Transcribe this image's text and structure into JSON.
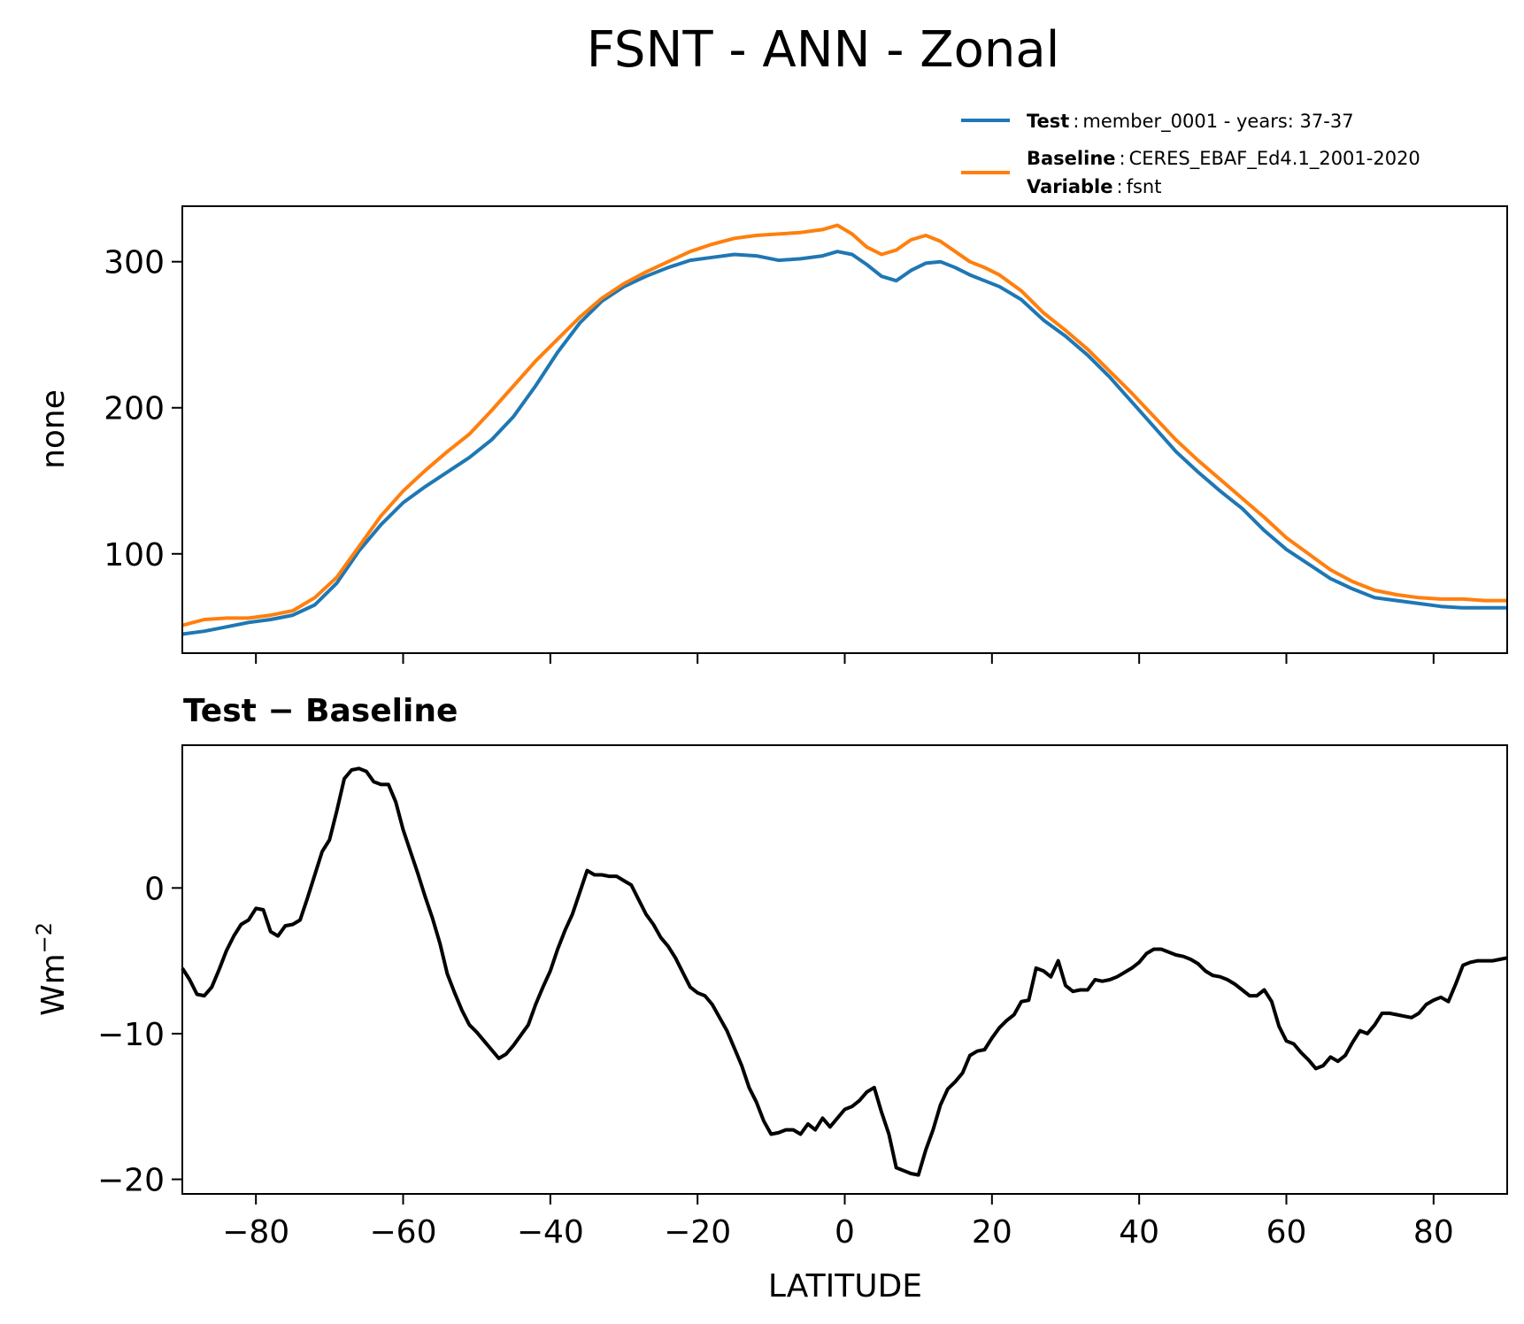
{
  "chart_data": [
    {
      "type": "line",
      "title": "FSNT - ANN - Zonal",
      "ylabel": "none",
      "xlim": [
        -90,
        90
      ],
      "ylim": [
        32,
        338
      ],
      "yticks": [
        100,
        200,
        300
      ],
      "xticks": [
        -80,
        -60,
        -40,
        -20,
        0,
        20,
        40,
        60,
        80
      ],
      "legend_position": "top-right",
      "legend": [
        {
          "key": "Test",
          "text": "member_0001 - years: 37-37",
          "color": "#1f77b4"
        },
        {
          "key": "Baseline",
          "text": "CERES_EBAF_Ed4.1_2001-2020",
          "color": "#ff7f0e"
        },
        {
          "key": "Variable",
          "text": "fsnt"
        }
      ],
      "series": [
        {
          "name": "Test",
          "color": "#1f77b4",
          "x": [
            -90,
            -87,
            -84,
            -81,
            -78,
            -75,
            -72,
            -69,
            -66,
            -63,
            -60,
            -57,
            -54,
            -51,
            -48,
            -45,
            -42,
            -39,
            -36,
            -33,
            -30,
            -27,
            -24,
            -21,
            -18,
            -15,
            -12,
            -9,
            -6,
            -3,
            -1,
            1,
            3,
            5,
            7,
            9,
            11,
            13,
            15,
            17,
            19,
            21,
            24,
            27,
            30,
            33,
            36,
            39,
            42,
            45,
            48,
            51,
            54,
            57,
            60,
            63,
            66,
            69,
            72,
            75,
            78,
            81,
            84,
            87,
            90
          ],
          "y": [
            45,
            47,
            50,
            53,
            55,
            58,
            65,
            80,
            102,
            120,
            135,
            146,
            156,
            166,
            178,
            194,
            215,
            238,
            258,
            273,
            283,
            290,
            296,
            301,
            303,
            305,
            304,
            301,
            302,
            304,
            307,
            305,
            298,
            290,
            287,
            294,
            299,
            300,
            296,
            291,
            287,
            283,
            274,
            260,
            249,
            236,
            221,
            204,
            187,
            170,
            156,
            143,
            131,
            116,
            103,
            93,
            83,
            76,
            70,
            68,
            66,
            64,
            63,
            63,
            63
          ]
        },
        {
          "name": "Baseline",
          "color": "#ff7f0e",
          "x": [
            -90,
            -87,
            -84,
            -81,
            -78,
            -75,
            -72,
            -69,
            -66,
            -63,
            -60,
            -57,
            -54,
            -51,
            -48,
            -45,
            -42,
            -39,
            -36,
            -33,
            -30,
            -27,
            -24,
            -21,
            -18,
            -15,
            -12,
            -9,
            -6,
            -3,
            -1,
            1,
            3,
            5,
            7,
            9,
            11,
            13,
            15,
            17,
            19,
            21,
            24,
            27,
            30,
            33,
            36,
            39,
            42,
            45,
            48,
            51,
            54,
            57,
            60,
            63,
            66,
            69,
            72,
            75,
            78,
            81,
            84,
            87,
            90
          ],
          "y": [
            51,
            55,
            56,
            56,
            58,
            61,
            70,
            84,
            105,
            126,
            143,
            157,
            170,
            182,
            198,
            215,
            232,
            247,
            262,
            275,
            285,
            293,
            300,
            307,
            312,
            316,
            318,
            319,
            320,
            322,
            325,
            319,
            310,
            305,
            308,
            315,
            318,
            314,
            307,
            300,
            296,
            291,
            280,
            265,
            253,
            240,
            225,
            210,
            194,
            178,
            164,
            151,
            138,
            125,
            111,
            100,
            89,
            81,
            75,
            72,
            70,
            69,
            69,
            68,
            68
          ]
        }
      ]
    },
    {
      "type": "line",
      "title": "Test − Baseline",
      "xlabel": "LATITUDE",
      "ylabel_base": "Wm",
      "ylabel_sup": "−2",
      "xlim": [
        -90,
        90
      ],
      "ylim": [
        -21,
        9.8
      ],
      "yticks": [
        -20,
        -10,
        0
      ],
      "xticks": [
        -80,
        -60,
        -40,
        -20,
        0,
        20,
        40,
        60,
        80
      ],
      "tick_labels_x": [
        "−80",
        "−60",
        "−40",
        "−20",
        "0",
        "20",
        "40",
        "60",
        "80"
      ],
      "tick_labels_y": [
        "−20",
        "−10",
        "0"
      ],
      "series": [
        {
          "name": "Test − Baseline",
          "color": "#000000",
          "x": [
            -90,
            -89,
            -88,
            -87,
            -86,
            -85,
            -84,
            -83,
            -82,
            -81,
            -80,
            -79,
            -78,
            -77,
            -76,
            -75,
            -74,
            -73,
            -72,
            -71,
            -70,
            -69,
            -68,
            -67,
            -66,
            -65,
            -64,
            -63,
            -62,
            -61,
            -60,
            -59,
            -58,
            -57,
            -56,
            -55,
            -54,
            -53,
            -52,
            -51,
            -50,
            -49,
            -48,
            -47,
            -46,
            -45,
            -44,
            -43,
            -42,
            -41,
            -40,
            -39,
            -38,
            -37,
            -36,
            -35,
            -34,
            -33,
            -32,
            -31,
            -30,
            -29,
            -28,
            -27,
            -26,
            -25,
            -24,
            -23,
            -22,
            -21,
            -20,
            -19,
            -18,
            -17,
            -16,
            -15,
            -14,
            -13,
            -12,
            -11,
            -10,
            -9,
            -8,
            -7,
            -6,
            -5,
            -4,
            -3,
            -2,
            -1,
            0,
            1,
            2,
            3,
            4,
            5,
            6,
            7,
            8,
            9,
            10,
            11,
            12,
            13,
            14,
            15,
            16,
            17,
            18,
            19,
            20,
            21,
            22,
            23,
            24,
            25,
            26,
            27,
            28,
            29,
            30,
            31,
            32,
            33,
            34,
            35,
            36,
            37,
            38,
            39,
            40,
            41,
            42,
            43,
            44,
            45,
            46,
            47,
            48,
            49,
            50,
            51,
            52,
            53,
            54,
            55,
            56,
            57,
            58,
            59,
            60,
            61,
            62,
            63,
            64,
            65,
            66,
            67,
            68,
            69,
            70,
            71,
            72,
            73,
            74,
            75,
            76,
            77,
            78,
            79,
            80,
            81,
            82,
            83,
            84,
            85,
            86,
            87,
            88,
            89,
            90
          ],
          "y": [
            -5.5,
            -6.3,
            -7.3,
            -7.4,
            -6.8,
            -5.6,
            -4.3,
            -3.3,
            -2.5,
            -2.2,
            -1.4,
            -1.5,
            -3.0,
            -3.3,
            -2.6,
            -2.5,
            -2.2,
            -0.7,
            0.9,
            2.5,
            3.3,
            5.3,
            7.5,
            8.1,
            8.2,
            8.0,
            7.3,
            7.1,
            7.1,
            5.9,
            4.0,
            2.5,
            1.0,
            -0.6,
            -2.1,
            -3.8,
            -5.9,
            -7.2,
            -8.4,
            -9.4,
            -9.9,
            -10.5,
            -11.1,
            -11.7,
            -11.4,
            -10.8,
            -10.1,
            -9.4,
            -8.0,
            -6.8,
            -5.7,
            -4.2,
            -2.9,
            -1.8,
            -0.3,
            1.2,
            0.9,
            0.9,
            0.8,
            0.8,
            0.5,
            0.2,
            -0.8,
            -1.8,
            -2.5,
            -3.4,
            -4.0,
            -4.8,
            -5.8,
            -6.8,
            -7.2,
            -7.4,
            -8.0,
            -8.9,
            -9.8,
            -11.0,
            -12.2,
            -13.7,
            -14.7,
            -16.0,
            -16.9,
            -16.8,
            -16.6,
            -16.6,
            -16.9,
            -16.2,
            -16.6,
            -15.8,
            -16.4,
            -15.8,
            -15.2,
            -15.0,
            -14.6,
            -14.0,
            -13.7,
            -15.4,
            -16.9,
            -19.2,
            -19.4,
            -19.6,
            -19.7,
            -18.0,
            -16.6,
            -14.9,
            -13.8,
            -13.3,
            -12.7,
            -11.5,
            -11.2,
            -11.1,
            -10.3,
            -9.6,
            -9.1,
            -8.7,
            -7.8,
            -7.7,
            -5.5,
            -5.7,
            -6.1,
            -5.0,
            -6.7,
            -7.1,
            -7.0,
            -7.0,
            -6.3,
            -6.4,
            -6.3,
            -6.1,
            -5.8,
            -5.5,
            -5.1,
            -4.5,
            -4.2,
            -4.2,
            -4.4,
            -4.6,
            -4.7,
            -4.9,
            -5.2,
            -5.7,
            -6.0,
            -6.1,
            -6.3,
            -6.6,
            -7.0,
            -7.4,
            -7.4,
            -7.0,
            -7.8,
            -9.5,
            -10.5,
            -10.7,
            -11.3,
            -11.8,
            -12.4,
            -12.2,
            -11.6,
            -11.9,
            -11.5,
            -10.6,
            -9.8,
            -10.0,
            -9.4,
            -8.6,
            -8.6,
            -8.7,
            -8.8,
            -8.9,
            -8.6,
            -8.0,
            -7.7,
            -7.5,
            -7.8,
            -6.6,
            -5.3,
            -5.1,
            -5.0,
            -5.0,
            -5.0,
            -4.9,
            -4.8
          ]
        }
      ]
    }
  ]
}
